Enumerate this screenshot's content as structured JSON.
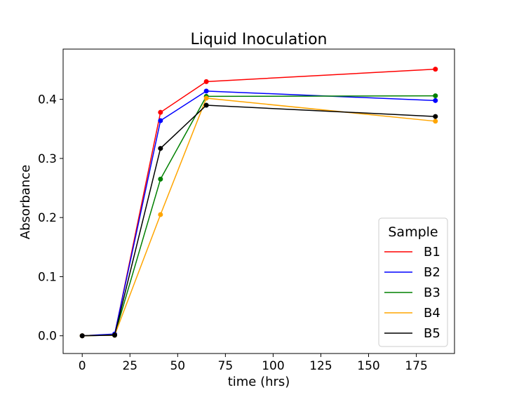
{
  "chart_data": {
    "type": "line",
    "title": "Liquid Inoculation",
    "xlabel": "time (hrs)",
    "ylabel": "Absorbance",
    "xlim": [
      -10,
      195
    ],
    "ylim": [
      -0.03,
      0.485
    ],
    "xticks": [
      0,
      25,
      50,
      75,
      100,
      125,
      150,
      175
    ],
    "yticks": [
      0.0,
      0.1,
      0.2,
      0.3,
      0.4
    ],
    "xtick_labels": [
      "0",
      "25",
      "50",
      "75",
      "100",
      "125",
      "150",
      "175"
    ],
    "ytick_labels": [
      "0.0",
      "0.1",
      "0.2",
      "0.3",
      "0.4"
    ],
    "x": [
      0,
      17,
      41,
      65,
      185
    ],
    "grid": false,
    "legend": {
      "title": "Sample",
      "placement": "lower-right"
    },
    "series": [
      {
        "name": "B1",
        "color": "#ff0000",
        "values": [
          0.0,
          0.002,
          0.378,
          0.43,
          0.451
        ]
      },
      {
        "name": "B2",
        "color": "#0000ff",
        "values": [
          0.0,
          0.003,
          0.364,
          0.414,
          0.398
        ]
      },
      {
        "name": "B3",
        "color": "#008000",
        "values": [
          0.0,
          0.001,
          0.265,
          0.405,
          0.406
        ]
      },
      {
        "name": "B4",
        "color": "#ffa500",
        "values": [
          0.0,
          0.001,
          0.205,
          0.402,
          0.363
        ]
      },
      {
        "name": "B5",
        "color": "#000000",
        "values": [
          0.0,
          0.001,
          0.317,
          0.39,
          0.371
        ]
      }
    ]
  }
}
